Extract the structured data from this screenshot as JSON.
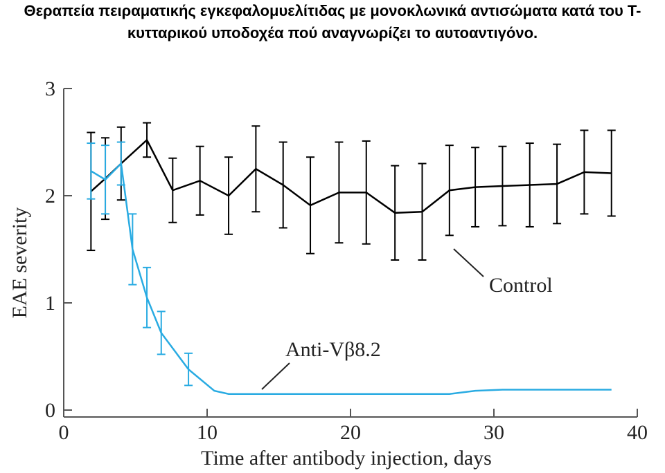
{
  "chart_data": {
    "type": "line",
    "title": "Θεραπεία πειραματικής εγκεφαλομυελίτιδας με μονοκλωνικά αντισώματα κατά του Τ-κυτταρικού υποδοχέα πού αναγνωρίζει το αυτοαντιγόνο.",
    "x_label": "Time after antibody injection, days",
    "y_label": "EAE severity",
    "xlim": [
      0,
      40
    ],
    "xticks": [
      0,
      10,
      20,
      30,
      40
    ],
    "ylim": [
      0,
      3
    ],
    "yticks": [
      0,
      1,
      2,
      3
    ],
    "series": [
      {
        "name": "Control",
        "color": "#000000",
        "x": [
          1.9,
          2.9,
          4.0,
          5.8,
          7.6,
          9.5,
          11.5,
          13.4,
          15.3,
          17.2,
          19.2,
          21.1,
          23.1,
          25.0,
          26.9,
          28.7,
          30.6,
          32.5,
          34.4,
          36.3,
          38.2
        ],
        "values": [
          2.04,
          2.16,
          2.3,
          2.52,
          2.05,
          2.14,
          2.0,
          2.25,
          2.1,
          1.91,
          2.03,
          2.03,
          1.84,
          1.85,
          2.05,
          2.08,
          2.09,
          2.1,
          2.11,
          2.22,
          2.21
        ],
        "errors": [
          0.55,
          0.38,
          0.34,
          0.16,
          0.3,
          0.32,
          0.36,
          0.4,
          0.4,
          0.45,
          0.47,
          0.48,
          0.44,
          0.45,
          0.42,
          0.37,
          0.37,
          0.39,
          0.37,
          0.39,
          0.4
        ]
      },
      {
        "name": "Anti-Vβ8.2",
        "color": "#29abe2",
        "x": [
          1.9,
          2.9,
          4.0,
          4.8,
          5.8,
          6.8,
          8.7,
          10.5,
          11.5,
          26.9,
          28.7,
          30.6,
          38.2
        ],
        "values": [
          2.23,
          2.15,
          2.3,
          1.5,
          1.05,
          0.72,
          0.38,
          0.18,
          0.15,
          0.15,
          0.18,
          0.19,
          0.19
        ],
        "errors": [
          0.26,
          0.32,
          0.2,
          0.33,
          0.28,
          0.2,
          0.15,
          null,
          null,
          null,
          null,
          null,
          null
        ]
      }
    ]
  }
}
